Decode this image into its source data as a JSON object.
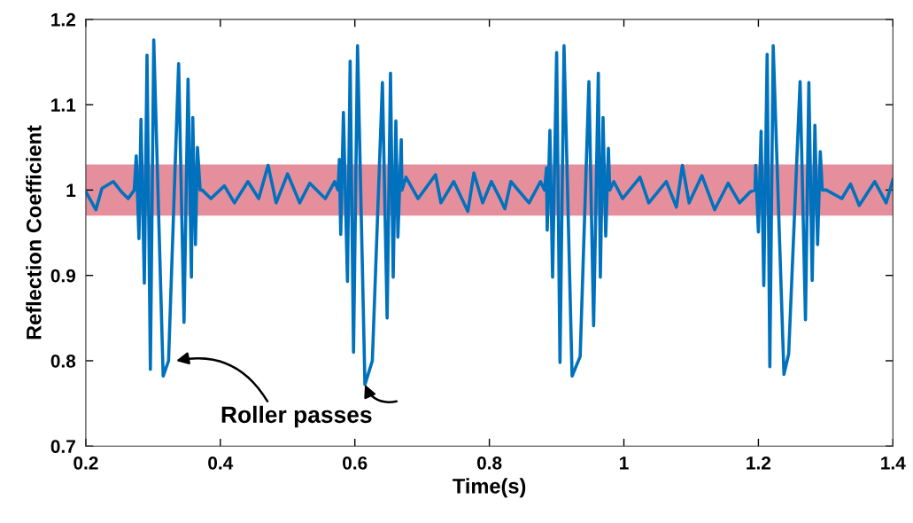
{
  "chart_data": {
    "type": "line",
    "xlabel": "Time(s)",
    "ylabel": "Reflection Coefficient",
    "xlim": [
      0.2,
      1.4
    ],
    "ylim": [
      0.7,
      1.2
    ],
    "xticks": [
      0.2,
      0.4,
      0.6,
      0.8,
      1,
      1.2,
      1.4
    ],
    "yticks": [
      0.7,
      0.8,
      0.9,
      1,
      1.1,
      1.2
    ],
    "grid": false,
    "legend": false,
    "marker": "none",
    "line_style": "solid",
    "annotations": [
      {
        "text": "Roller passes",
        "x": 0.615,
        "y": 0.772
      }
    ],
    "bands": [
      {
        "axis": "y",
        "from": 0.97,
        "to": 1.03,
        "color": "#e07b8b"
      }
    ],
    "series": [
      {
        "color": "#0072bd",
        "x": [
          0.2,
          0.215,
          0.224,
          0.241,
          0.254,
          0.263,
          0.272,
          0.275,
          0.279,
          0.282,
          0.287,
          0.291,
          0.296,
          0.301,
          0.315,
          0.323,
          0.338,
          0.346,
          0.352,
          0.357,
          0.359,
          0.363,
          0.366,
          0.37,
          0.373,
          0.386,
          0.406,
          0.421,
          0.441,
          0.457,
          0.471,
          0.483,
          0.5,
          0.518,
          0.533,
          0.556,
          0.57,
          0.575,
          0.577,
          0.579,
          0.583,
          0.589,
          0.593,
          0.598,
          0.604,
          0.615,
          0.626,
          0.641,
          0.648,
          0.653,
          0.657,
          0.661,
          0.664,
          0.669,
          0.67,
          0.676,
          0.694,
          0.72,
          0.728,
          0.747,
          0.768,
          0.777,
          0.79,
          0.803,
          0.814,
          0.823,
          0.832,
          0.859,
          0.876,
          0.882,
          0.885,
          0.886,
          0.89,
          0.894,
          0.9,
          0.905,
          0.911,
          0.923,
          0.935,
          0.948,
          0.955,
          0.962,
          0.965,
          0.969,
          0.973,
          0.977,
          0.979,
          0.985,
          0.998,
          1.024,
          1.037,
          1.063,
          1.078,
          1.087,
          1.097,
          1.116,
          1.135,
          1.155,
          1.172,
          1.188,
          1.195,
          1.196,
          1.2,
          1.204,
          1.208,
          1.213,
          1.217,
          1.222,
          1.238,
          1.245,
          1.262,
          1.27,
          1.275,
          1.28,
          1.284,
          1.288,
          1.292,
          1.295,
          1.301,
          1.324,
          1.337,
          1.35,
          1.373,
          1.39,
          1.4
        ],
        "values": [
          0.998,
          0.977,
          1.002,
          1.01,
          0.997,
          0.99,
          1.0,
          1.04,
          0.943,
          1.083,
          0.891,
          1.158,
          0.79,
          1.176,
          0.782,
          0.8,
          1.148,
          0.845,
          1.13,
          0.898,
          1.085,
          0.936,
          1.05,
          1.0,
          1.0,
          0.99,
          1.005,
          0.985,
          1.01,
          0.99,
          1.029,
          0.985,
          1.019,
          0.985,
          1.008,
          0.99,
          1.01,
          1.0,
          1.036,
          0.948,
          1.091,
          0.893,
          1.151,
          0.81,
          1.169,
          0.772,
          0.8,
          1.126,
          0.85,
          1.137,
          0.898,
          1.081,
          0.945,
          1.059,
          1.0,
          1.015,
          0.99,
          1.018,
          0.985,
          1.01,
          0.975,
          1.02,
          0.985,
          1.01,
          0.993,
          0.978,
          1.01,
          0.985,
          1.01,
          1.0,
          1.026,
          0.953,
          1.07,
          0.898,
          1.161,
          0.798,
          1.169,
          0.782,
          0.805,
          1.127,
          0.841,
          1.137,
          0.898,
          1.085,
          0.946,
          1.049,
          1.0,
          1.01,
          0.99,
          1.015,
          0.985,
          1.01,
          0.98,
          1.029,
          0.985,
          1.017,
          0.977,
          1.008,
          0.985,
          0.998,
          1.0,
          1.029,
          0.951,
          1.069,
          0.888,
          1.159,
          0.793,
          1.169,
          0.784,
          0.808,
          1.127,
          0.848,
          1.126,
          0.894,
          1.076,
          0.936,
          1.045,
          1.0,
          1.0,
          0.99,
          1.007,
          0.982,
          1.01,
          0.985,
          1.012
        ]
      }
    ]
  }
}
